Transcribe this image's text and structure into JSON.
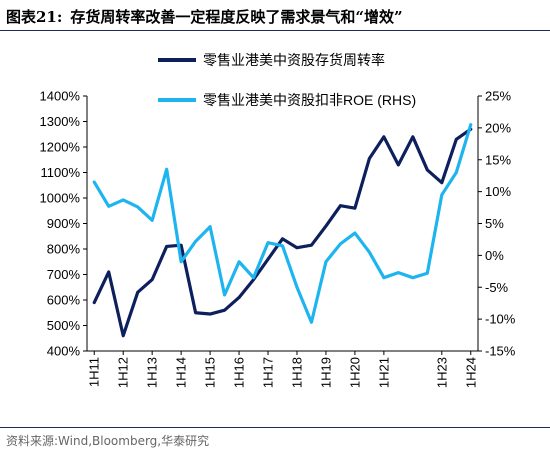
{
  "header": {
    "figure_number": "图表21:",
    "title": "存货周转率改善一定程度反映了需求景气和“增效”"
  },
  "source": "资料来源:Wind,Bloomberg,华泰研究",
  "colors": {
    "series1": "#0d1f5c",
    "series2": "#1eb4f0",
    "rule": "#1a2a5a"
  },
  "chart_data": {
    "type": "line",
    "title": "",
    "xlabel": "",
    "ylabel": "",
    "ylabel_right": "",
    "legend_position": "top-right",
    "grid": false,
    "x": [
      "1H11",
      "2H11",
      "1H12",
      "2H12",
      "1H13",
      "2H13",
      "1H14",
      "2H14",
      "1H15",
      "2H15",
      "1H16",
      "2H16",
      "1H17",
      "2H17",
      "1H18",
      "2H18",
      "1H19",
      "2H19",
      "1H20",
      "2H20",
      "1H21",
      "2H21",
      "1H22",
      "2H22",
      "1H23",
      "2H23",
      "1H24"
    ],
    "x_tick_labels": [
      "1H11",
      "1H12",
      "1H13",
      "1H14",
      "1H15",
      "1H16",
      "1H17",
      "1H18",
      "1H19",
      "1H20",
      "1H21",
      "1H23",
      "1H24"
    ],
    "ylim_left": [
      400,
      1400
    ],
    "ylim_right": [
      -15,
      25
    ],
    "left_ticks": [
      "400%",
      "500%",
      "600%",
      "700%",
      "800%",
      "900%",
      "1000%",
      "1100%",
      "1200%",
      "1300%",
      "1400%"
    ],
    "right_ticks": [
      "-15%",
      "-10%",
      "-5%",
      "0%",
      "5%",
      "10%",
      "15%",
      "20%",
      "25%"
    ],
    "series": [
      {
        "name": "零售业港美中资股存货周转率",
        "axis": "left",
        "values": [
          590,
          710,
          460,
          630,
          680,
          810,
          815,
          550,
          545,
          560,
          610,
          680,
          760,
          840,
          805,
          815,
          890,
          970,
          960,
          1155,
          1240,
          1130,
          1240,
          1110,
          1060,
          1230,
          1270
        ]
      },
      {
        "name": "零售业港美中资股扣非ROE (RHS)",
        "axis": "right",
        "values": [
          11.5,
          7.7,
          8.7,
          7.6,
          5.5,
          13.5,
          -1.0,
          2.2,
          4.5,
          -6.2,
          -1.0,
          -3.5,
          2.0,
          1.5,
          -5.0,
          -10.5,
          -1.0,
          1.8,
          3.5,
          0.5,
          -3.5,
          -2.7,
          -3.5,
          -2.8,
          9.5,
          13.0,
          20.5
        ]
      }
    ]
  }
}
